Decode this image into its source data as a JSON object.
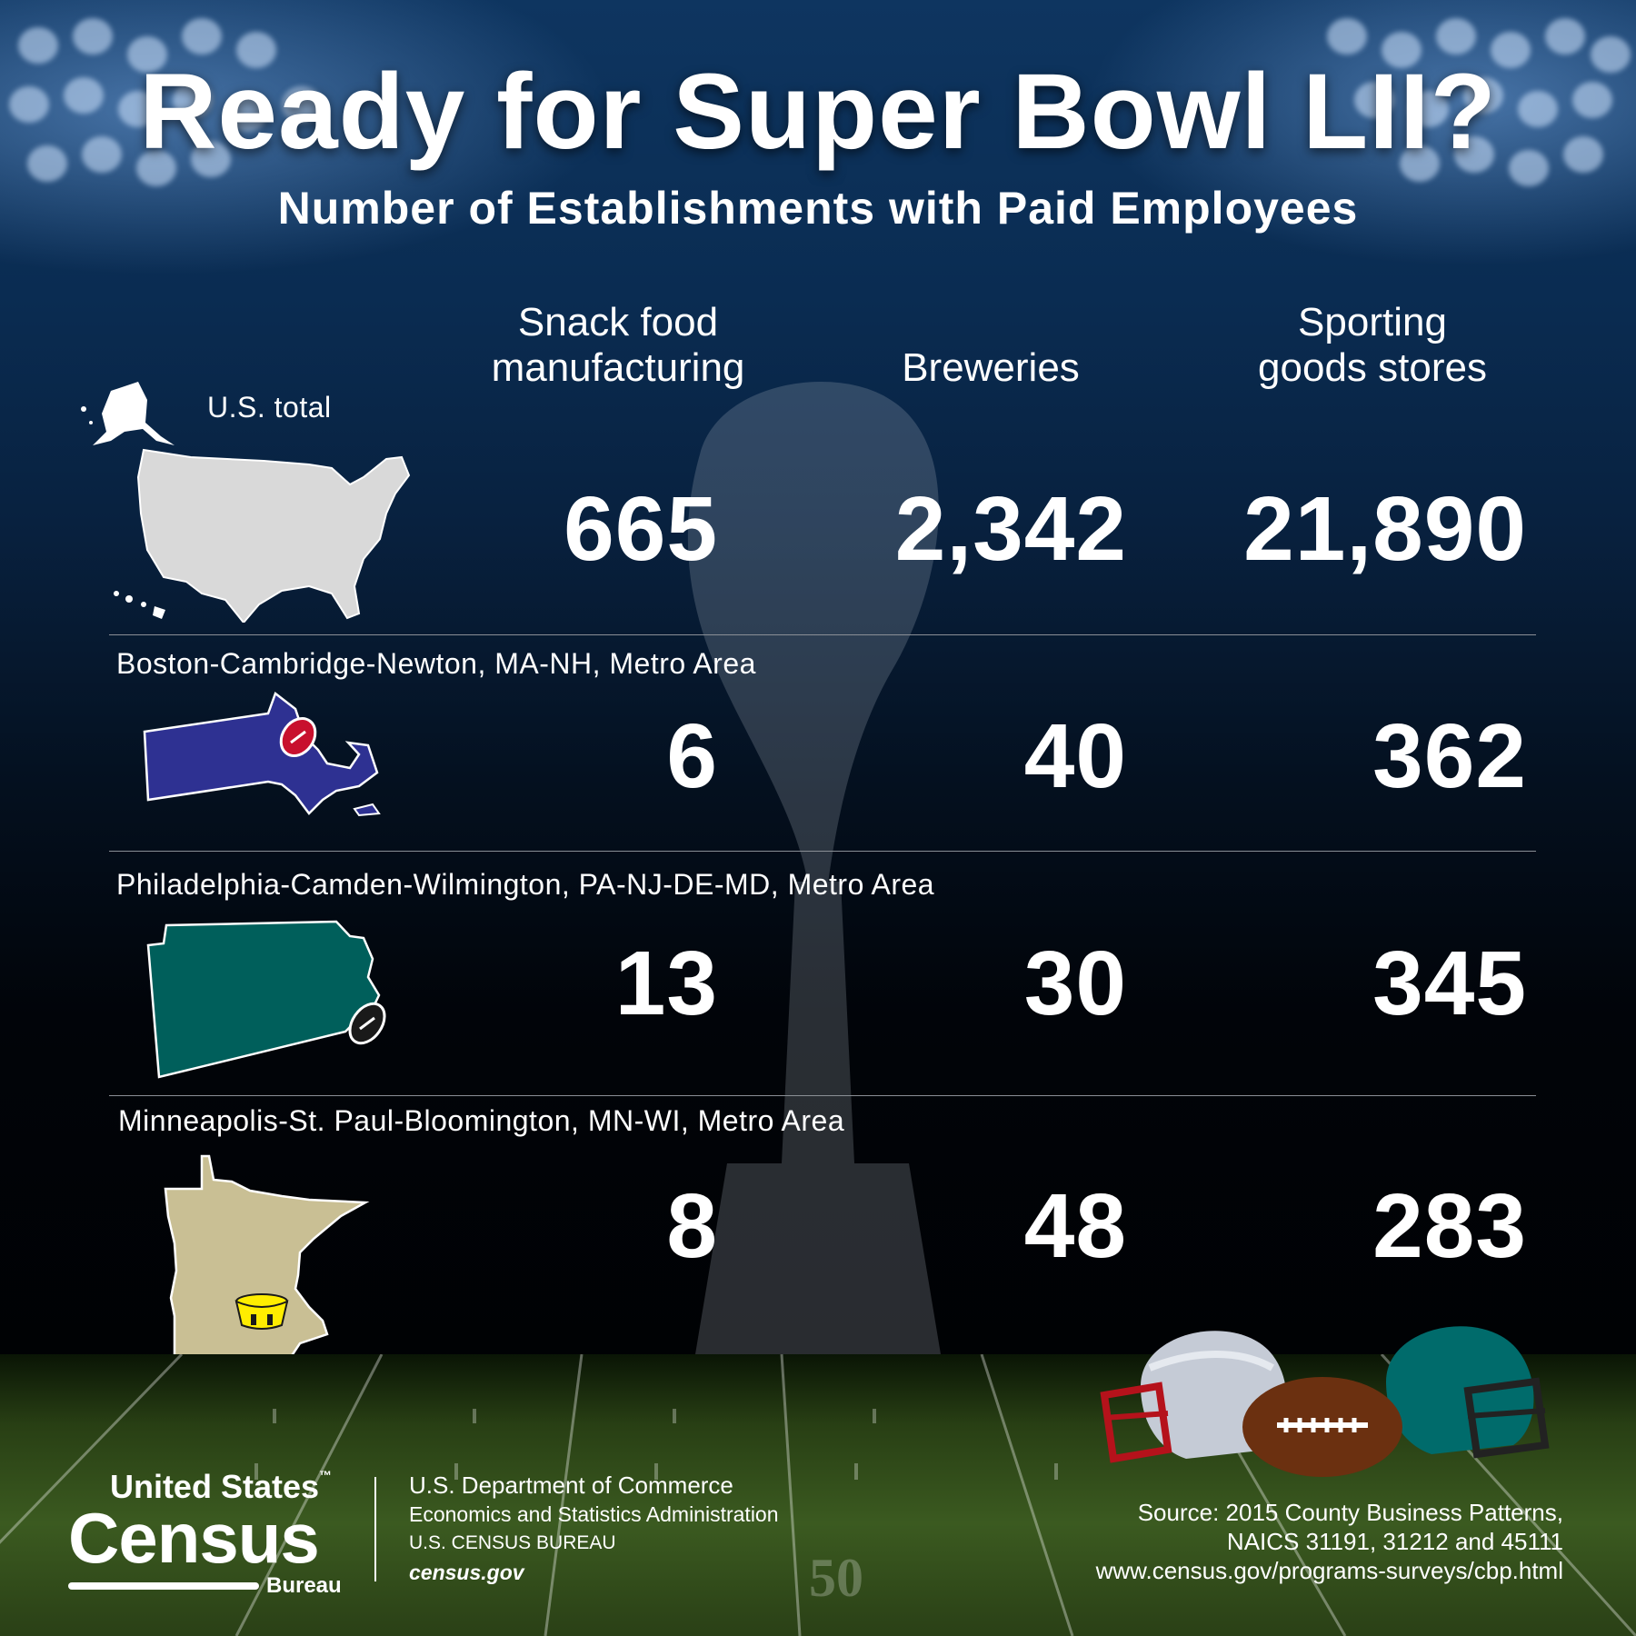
{
  "title": "Ready for Super Bowl LII?",
  "subtitle": "Number of Establishments with Paid Employees",
  "columns": {
    "snack": [
      "Snack food",
      "manufacturing"
    ],
    "breweries": "Breweries",
    "sporting": [
      "Sporting",
      "goods stores"
    ]
  },
  "us_total_label": "U.S. total",
  "rows": [
    {
      "label": "U.S. total",
      "snack": "665",
      "breweries": "2,342",
      "sporting": "21,890",
      "map_color": "#d9d9d9"
    },
    {
      "label": "Boston-Cambridge-Newton, MA-NH, Metro Area",
      "snack": "6",
      "breweries": "40",
      "sporting": "362",
      "map_color": "#2e3192"
    },
    {
      "label": "Philadelphia-Camden-Wilmington, PA-NJ-DE-MD, Metro Area",
      "snack": "13",
      "breweries": "30",
      "sporting": "345",
      "map_color": "#005f5b"
    },
    {
      "label": "Minneapolis-St. Paul-Bloomington, MN-WI, Metro Area",
      "snack": "8",
      "breweries": "48",
      "sporting": "283",
      "map_color": "#c9bf94"
    }
  ],
  "logo": {
    "line1": "United States",
    "tm": "™",
    "line2": "Census",
    "line3": "Bureau"
  },
  "dept": {
    "line1": "U.S. Department of Commerce",
    "line2": "Economics and Statistics Administration",
    "line3": "U.S. CENSUS BUREAU",
    "line4": "census.gov"
  },
  "source": {
    "line1": "Source: 2015 County Business Patterns,",
    "line2": "NAICS 31191, 31212 and 45111",
    "line3": "www.census.gov/programs-surveys/cbp.html"
  },
  "field_yardline": "50",
  "icons": [
    "alaska-map-icon",
    "usa-map-icon",
    "hawaii-map-icon",
    "massachusetts-map-icon",
    "pennsylvania-map-icon",
    "minnesota-map-icon",
    "football-icon",
    "stadium-icon",
    "trophy-silhouette",
    "patriots-helmet-icon",
    "eagles-helmet-icon"
  ]
}
